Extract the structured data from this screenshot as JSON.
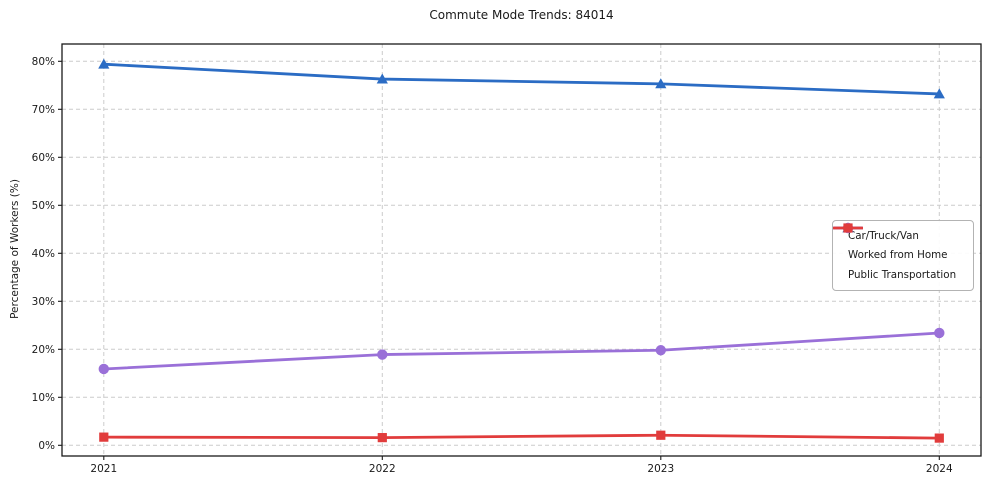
{
  "chart_data": {
    "type": "line",
    "title": "Commute Mode Trends: 84014",
    "xlabel": "",
    "ylabel": "Percentage of Workers (%)",
    "categories": [
      "2021",
      "2022",
      "2023",
      "2024"
    ],
    "series": [
      {
        "name": "Car/Truck/Van",
        "marker": "triangle",
        "color": "#2b6cc4",
        "values": [
          79.4,
          76.3,
          75.3,
          73.2
        ]
      },
      {
        "name": "Worked from Home",
        "marker": "circle",
        "color": "#9a70d8",
        "values": [
          15.9,
          18.9,
          19.8,
          23.4
        ]
      },
      {
        "name": "Public Transportation",
        "marker": "square",
        "color": "#e13c3c",
        "values": [
          1.7,
          1.6,
          2.1,
          1.5
        ]
      }
    ],
    "y_ticks": [
      "0%",
      "10%",
      "20%",
      "30%",
      "40%",
      "50%",
      "60%",
      "70%",
      "80%"
    ],
    "y_tick_values": [
      0,
      10,
      20,
      30,
      40,
      50,
      60,
      70,
      80
    ],
    "ylim": [
      -2.2,
      83.6
    ],
    "grid": true,
    "grid_style": "dashed",
    "legend_position": "center right",
    "colors": {
      "grid": "#cccccc",
      "axis": "#1a1a1a",
      "background": "#ffffff"
    }
  }
}
